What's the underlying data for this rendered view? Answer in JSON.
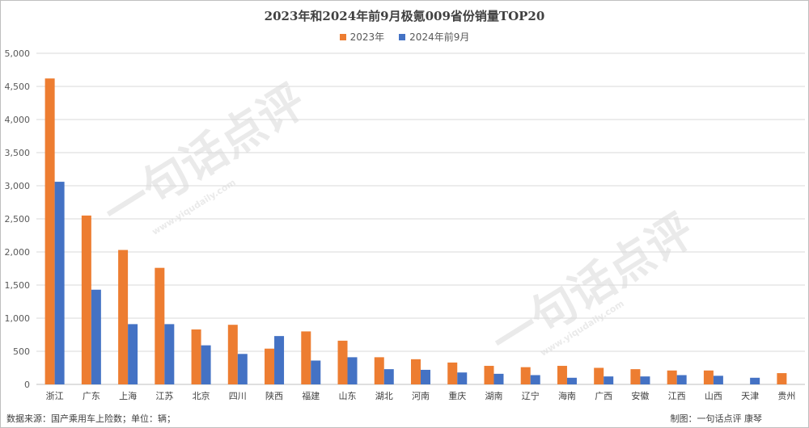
{
  "chart_data": {
    "type": "bar",
    "title": "2023年和2024年前9月极氪009省份销量TOP20",
    "categories": [
      "浙江",
      "广东",
      "上海",
      "江苏",
      "北京",
      "四川",
      "陕西",
      "福建",
      "山东",
      "湖北",
      "河南",
      "重庆",
      "湖南",
      "辽宁",
      "海南",
      "广西",
      "安徽",
      "江西",
      "山西",
      "天津",
      "贵州"
    ],
    "series": [
      {
        "name": "2023年",
        "color": "#ed7d31",
        "values": [
          4620,
          2550,
          2030,
          1760,
          830,
          900,
          540,
          800,
          660,
          410,
          380,
          330,
          280,
          260,
          280,
          250,
          230,
          210,
          210,
          0,
          170
        ]
      },
      {
        "name": "2024年前9月",
        "color": "#4472c4",
        "values": [
          3060,
          1430,
          910,
          910,
          590,
          460,
          730,
          360,
          410,
          230,
          220,
          180,
          160,
          140,
          100,
          120,
          120,
          140,
          130,
          100,
          0
        ]
      }
    ],
    "ylim": [
      0,
      5000
    ],
    "yticks": [
      "0",
      "500",
      "1,000",
      "1,500",
      "2,000",
      "2,500",
      "3,000",
      "3,500",
      "4,000",
      "4,500",
      "5,000"
    ],
    "grid": true,
    "legend_position": "top-center"
  },
  "footer": {
    "source": "数据来源：国产乘用车上险数；单位：辆；",
    "credit": "制图：一句话点评 康琴"
  },
  "watermark": {
    "text": "一句话点评",
    "url": "www.yiqudaily.com"
  }
}
